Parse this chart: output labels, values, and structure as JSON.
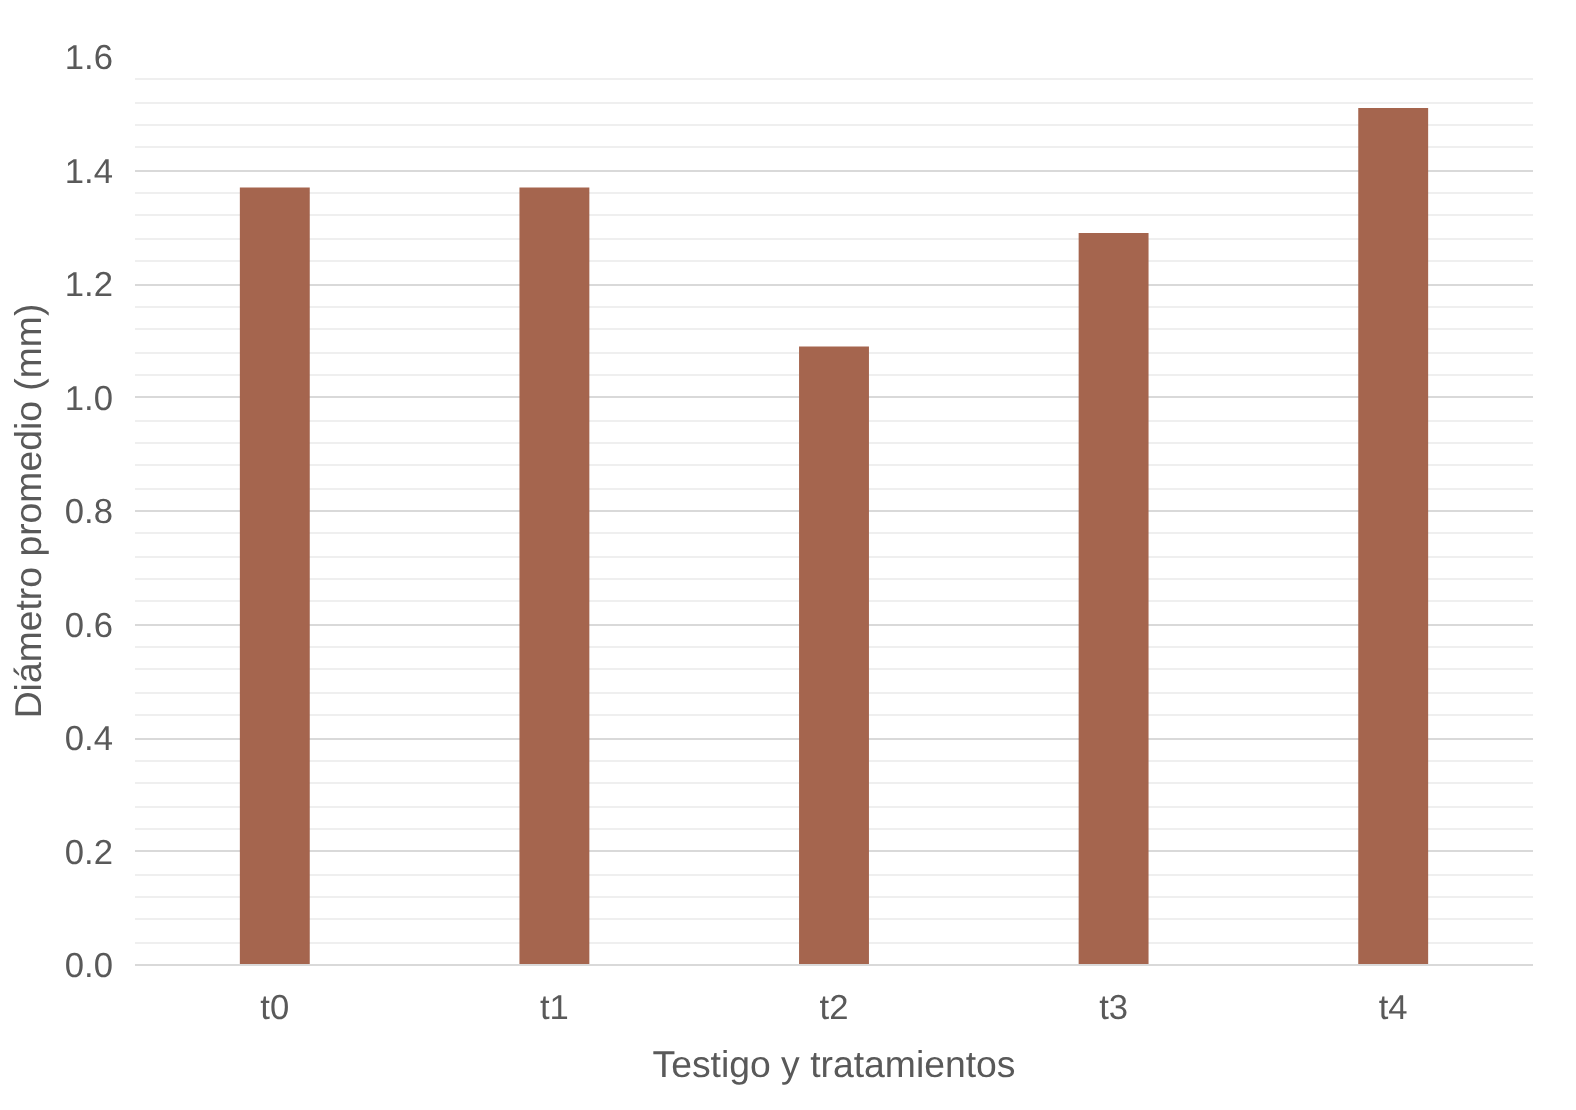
{
  "chart_data": {
    "type": "bar",
    "xlabel": "Testigo y tratamientos",
    "ylabel": "Diámetro promedio (mm)",
    "categories": [
      "t0",
      "t1",
      "t2",
      "t3",
      "t4"
    ],
    "values": [
      1.37,
      1.37,
      1.09,
      1.29,
      1.51
    ],
    "color": "#a5654e",
    "ylim": [
      0,
      1.6
    ],
    "yticks": [
      {
        "value": 0,
        "label": "0.0"
      },
      {
        "value": 0.2,
        "label": "0.2"
      },
      {
        "value": 0.4,
        "label": "0.4"
      },
      {
        "value": 0.6,
        "label": "0.6"
      },
      {
        "value": 0.8,
        "label": "0.8"
      },
      {
        "value": 1.0,
        "label": "1.0"
      },
      {
        "value": 1.2,
        "label": "1.2"
      },
      {
        "value": 1.4,
        "label": "1.4"
      },
      {
        "value": 1.6,
        "label": "1.6"
      }
    ],
    "grid": "y"
  }
}
